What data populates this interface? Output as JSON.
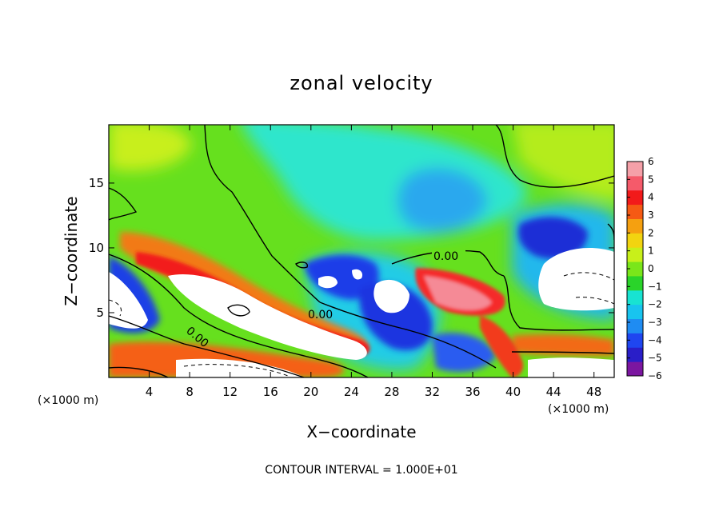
{
  "chart_data": {
    "type": "heatmap",
    "title": "zonal velocity",
    "xlabel": "X−coordinate",
    "ylabel": "Z−coordinate",
    "x_unit_label_left": "(×1000 m)",
    "x_unit_label_right": "(×1000 m)",
    "xlim": [
      0,
      50
    ],
    "ylim": [
      0,
      19.5
    ],
    "x_ticks": [
      4,
      8,
      12,
      16,
      20,
      24,
      28,
      32,
      36,
      40,
      44,
      48
    ],
    "y_ticks": [
      5,
      10,
      15
    ],
    "colorbar": {
      "ticks": [
        6,
        5,
        4,
        3,
        2,
        1,
        0,
        -1,
        -2,
        -3,
        -4,
        -5,
        -6
      ],
      "range": [
        -6,
        6
      ],
      "colors": [
        "#7b16a0",
        "#2a1ec8",
        "#1f46f0",
        "#1f8cf2",
        "#18c4ef",
        "#18e3d2",
        "#2ad42a",
        "#7ae61a",
        "#c8f01a",
        "#f2d410",
        "#f5a010",
        "#f55a14",
        "#f21a1a",
        "#f55a6a",
        "#f5a0a8"
      ]
    },
    "contour_labels": [
      "0.00",
      "0.00",
      "0.00"
    ],
    "contour_interval_text": "CONTOUR INTERVAL = 1.000E+01",
    "grid": false
  }
}
